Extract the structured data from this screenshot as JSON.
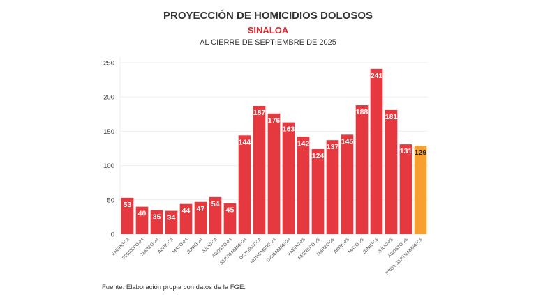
{
  "chart_data": {
    "type": "bar",
    "title": "PROYECCIÓN DE HOMICIDIOS DOLOSOS",
    "subtitle": "SINALOA",
    "subtitle2": "AL CIERRE DE SEPTIEMBRE DE 2025",
    "source": "Fuente: Elaboración propia con datos de la FGE.",
    "categories": [
      "ENERO-24",
      "FEBRERO-24",
      "MARZO-24",
      "ABRIL-24",
      "MAYO-24",
      "JUNIO-24",
      "JULIO-24",
      "AGOSTO-24",
      "SEPTIEMBRE-24",
      "OCTUBRE-24",
      "NOVIEMBRE-24",
      "DICIEMBRE-24",
      "ENERO-25",
      "FEBRERO-25",
      "MARZO-25",
      "ABRIL-25",
      "MAYO-25",
      "JUNIO-25",
      "JULIO-25",
      "AGOSTO-25",
      "PROY SEPTIEMBRE-25"
    ],
    "values": [
      53,
      40,
      35,
      34,
      44,
      47,
      54,
      45,
      144,
      187,
      176,
      163,
      142,
      124,
      137,
      145,
      188,
      241,
      181,
      131,
      129
    ],
    "ylim": [
      0,
      250
    ],
    "yticks": [
      0,
      50,
      100,
      150,
      200,
      250
    ],
    "grid": true,
    "colors": {
      "actual": "#e5393f",
      "projection": "#f7a030"
    }
  }
}
